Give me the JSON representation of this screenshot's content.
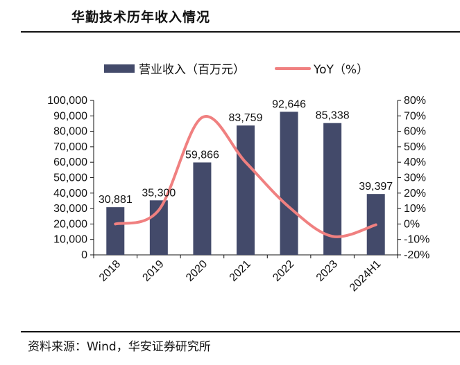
{
  "header": {
    "title": "华勤技术历年收入情况"
  },
  "footer": {
    "source": "资料来源：Wind，华安证券研究所"
  },
  "colors": {
    "bar": "#434a6a",
    "line": "#f08080",
    "axis": "#111111"
  },
  "chart_data": {
    "type": "bar",
    "categories": [
      "2018",
      "2019",
      "2020",
      "2021",
      "2022",
      "2023",
      "2024H1"
    ],
    "series": [
      {
        "name": "营业收入（百万元）",
        "type": "bar",
        "axis": "left",
        "values": [
          30881,
          35300,
          59866,
          83759,
          92646,
          85338,
          39397
        ],
        "value_labels": [
          "30,881",
          "35,300",
          "59,866",
          "83,759",
          "92,646",
          "85,338",
          "39,397"
        ]
      },
      {
        "name": "YoY（%）",
        "type": "line",
        "axis": "right",
        "values": [
          0,
          9,
          69,
          40,
          11,
          -8,
          -0.5
        ]
      }
    ],
    "ylim_left": [
      0,
      100000
    ],
    "yticks_left": [
      "0",
      "10,000",
      "20,000",
      "30,000",
      "40,000",
      "50,000",
      "60,000",
      "70,000",
      "80,000",
      "90,000",
      "100,000"
    ],
    "ylim_right": [
      -20,
      80
    ],
    "yticks_right": [
      "-20%",
      "-10%",
      "0%",
      "10%",
      "20%",
      "30%",
      "40%",
      "50%",
      "60%",
      "70%",
      "80%"
    ],
    "legend": "top",
    "grid": false
  }
}
